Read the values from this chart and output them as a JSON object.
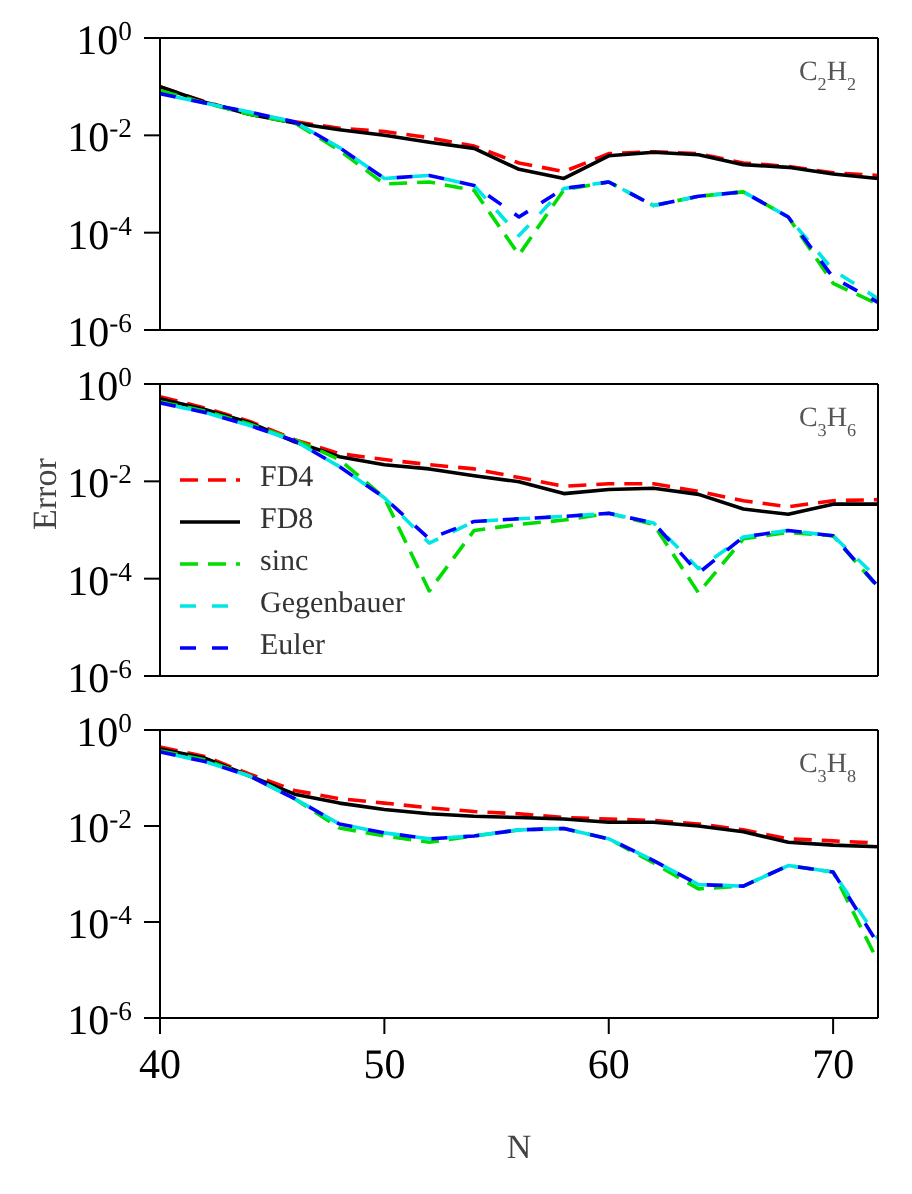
{
  "chart_data": [
    {
      "type": "line",
      "x": [
        40,
        42,
        44,
        46,
        48,
        50,
        52,
        54,
        56,
        58,
        60,
        62,
        64,
        66,
        68,
        70,
        72
      ],
      "xlim": [
        40,
        72
      ],
      "xticks": [
        40,
        50,
        60,
        70
      ],
      "ylim": [
        1e-06,
        1
      ],
      "yticks": [
        {
          "value": 1,
          "label": "10$^{0}$"
        },
        {
          "value": 0.01,
          "label": "10$^{-2}$"
        },
        {
          "value": 0.0001,
          "label": "10$^{-4}$"
        },
        {
          "value": 1e-06,
          "label": "10$^{-6}$"
        }
      ],
      "log": true,
      "tick_labels": "y",
      "annotations": [
        "C$_{2}$H$_{2}$"
      ],
      "series": [
        {
          "color": "#ff0000",
          "line_style": "dashed",
          "values": [
            0.1,
            0.049,
            0.027,
            0.019,
            0.014,
            0.012,
            0.0089,
            0.006,
            0.0027,
            0.0018,
            0.0042,
            0.0046,
            0.0042,
            0.0027,
            0.0023,
            0.0017,
            0.0015
          ]
        },
        {
          "color": "#000000",
          "line_style": "solid",
          "values": [
            0.1,
            0.048,
            0.027,
            0.018,
            0.013,
            0.01,
            0.0072,
            0.0054,
            0.002,
            0.0013,
            0.0038,
            0.0045,
            0.004,
            0.0025,
            0.0022,
            0.0016,
            0.0013
          ]
        },
        {
          "color": "#00dd00",
          "line_style": "dashed",
          "values": [
            0.083,
            0.046,
            0.027,
            0.018,
            0.0049,
            0.001,
            0.0011,
            0.00074,
            3.5e-05,
            0.00076,
            0.0011,
            0.00036,
            0.00056,
            0.00069,
            0.00021,
            9.1e-06,
            3.4e-06
          ]
        },
        {
          "color": "#00e5e5",
          "line_style": "dashed",
          "values": [
            0.072,
            0.046,
            0.03,
            0.019,
            0.0056,
            0.0013,
            0.0015,
            0.00093,
            8.7e-05,
            0.00081,
            0.0011,
            0.00036,
            0.00056,
            0.00069,
            0.00021,
            1.7e-05,
            4.4e-06
          ]
        },
        {
          "color": "#0000ff",
          "line_style": "dashed",
          "values": [
            0.072,
            0.046,
            0.03,
            0.019,
            0.0056,
            0.0013,
            0.0015,
            0.00093,
            0.00021,
            0.00081,
            0.0011,
            0.00036,
            0.00056,
            0.00069,
            0.00021,
            1.2e-05,
            3.7e-06
          ]
        }
      ]
    },
    {
      "type": "line",
      "x": [
        40,
        42,
        44,
        46,
        48,
        50,
        52,
        54,
        56,
        58,
        60,
        62,
        64,
        66,
        68,
        70,
        72
      ],
      "xlim": [
        40,
        72
      ],
      "xticks": [
        40,
        50,
        60,
        70
      ],
      "ylim": [
        1e-06,
        1
      ],
      "yticks": [
        {
          "value": 1,
          "label": "10$^{0}$"
        },
        {
          "value": 0.01,
          "label": "10$^{-2}$"
        },
        {
          "value": 0.0001,
          "label": "10$^{-4}$"
        },
        {
          "value": 1e-06,
          "label": "10$^{-6}$"
        }
      ],
      "log": true,
      "tick_labels": "y",
      "ylabel": "Error",
      "legend": "left",
      "annotations": [
        "C$_{3}$H$_{6}$"
      ],
      "series": [
        {
          "name": "FD4",
          "color": "#ff0000",
          "line_style": "dashed",
          "values": [
            0.55,
            0.32,
            0.17,
            0.072,
            0.037,
            0.028,
            0.022,
            0.018,
            0.012,
            0.0079,
            0.0089,
            0.0089,
            0.0062,
            0.004,
            0.003,
            0.004,
            0.0042
          ]
        },
        {
          "name": "FD8",
          "color": "#000000",
          "line_style": "solid",
          "values": [
            0.5,
            0.3,
            0.16,
            0.065,
            0.032,
            0.022,
            0.018,
            0.013,
            0.0098,
            0.0056,
            0.0068,
            0.0072,
            0.0054,
            0.0027,
            0.0021,
            0.0034,
            0.0034
          ]
        },
        {
          "name": "sinc",
          "color": "#00dd00",
          "line_style": "dashed",
          "values": [
            0.43,
            0.28,
            0.15,
            0.072,
            0.028,
            0.0046,
            5.6e-05,
            0.00098,
            0.0013,
            0.0016,
            0.0022,
            0.0013,
            5.1e-05,
            0.00066,
            0.00089,
            0.00076,
            6.6e-05
          ]
        },
        {
          "name": "Gegenbauer",
          "color": "#00e5e5",
          "line_style": "dashed",
          "values": [
            0.41,
            0.26,
            0.14,
            0.068,
            0.02,
            0.0046,
            0.00054,
            0.0015,
            0.0017,
            0.0019,
            0.0022,
            0.0014,
            0.00016,
            0.00072,
            0.00098,
            0.00076,
            0.0001
          ]
        },
        {
          "name": "Euler",
          "color": "#0000ff",
          "line_style": "dashed",
          "values": [
            0.41,
            0.26,
            0.14,
            0.068,
            0.02,
            0.0046,
            0.00066,
            0.0015,
            0.0017,
            0.0019,
            0.0022,
            0.0014,
            0.00013,
            0.00072,
            0.00098,
            0.00076,
            6.9e-05
          ]
        }
      ]
    },
    {
      "type": "line",
      "x": [
        40,
        42,
        44,
        46,
        48,
        50,
        52,
        54,
        56,
        58,
        60,
        62,
        64,
        66,
        68,
        70,
        72
      ],
      "xlim": [
        40,
        72
      ],
      "xticks": [
        40,
        50,
        60,
        70
      ],
      "ylim": [
        1e-06,
        1
      ],
      "yticks": [
        {
          "value": 1,
          "label": "10$^{0}$"
        },
        {
          "value": 0.01,
          "label": "10$^{-2}$"
        },
        {
          "value": 0.0001,
          "label": "10$^{-4}$"
        },
        {
          "value": 1e-06,
          "label": "10$^{-6}$"
        }
      ],
      "log": true,
      "xlabel": "N",
      "annotations": [
        "C$_{3}$H$_{8}$"
      ],
      "series": [
        {
          "color": "#ff0000",
          "line_style": "dashed",
          "values": [
            0.44,
            0.28,
            0.12,
            0.055,
            0.037,
            0.03,
            0.024,
            0.02,
            0.018,
            0.015,
            0.014,
            0.013,
            0.011,
            0.0083,
            0.0054,
            0.0049,
            0.0044
          ]
        },
        {
          "color": "#000000",
          "line_style": "solid",
          "values": [
            0.4,
            0.26,
            0.11,
            0.046,
            0.03,
            0.022,
            0.018,
            0.016,
            0.015,
            0.014,
            0.012,
            0.012,
            0.01,
            0.0076,
            0.0046,
            0.004,
            0.0037
          ]
        },
        {
          "color": "#00dd00",
          "line_style": "dashed",
          "values": [
            0.37,
            0.24,
            0.11,
            0.037,
            0.0091,
            0.0062,
            0.0046,
            0.0062,
            0.0083,
            0.0089,
            0.0054,
            0.0017,
            0.00049,
            0.00056,
            0.0015,
            0.0011,
            1.5e-05
          ]
        },
        {
          "color": "#00e5e5",
          "line_style": "dashed",
          "values": [
            0.35,
            0.22,
            0.11,
            0.037,
            0.011,
            0.0072,
            0.0054,
            0.0062,
            0.0083,
            0.0089,
            0.0054,
            0.0019,
            0.0006,
            0.00056,
            0.0015,
            0.0011,
            4.5e-05
          ]
        },
        {
          "color": "#0000ff",
          "line_style": "dashed",
          "values": [
            0.35,
            0.22,
            0.11,
            0.037,
            0.011,
            0.0072,
            0.0054,
            0.0062,
            0.0083,
            0.0089,
            0.0054,
            0.0019,
            0.0006,
            0.00056,
            0.0015,
            0.0011,
            3.5e-05
          ]
        }
      ]
    }
  ]
}
